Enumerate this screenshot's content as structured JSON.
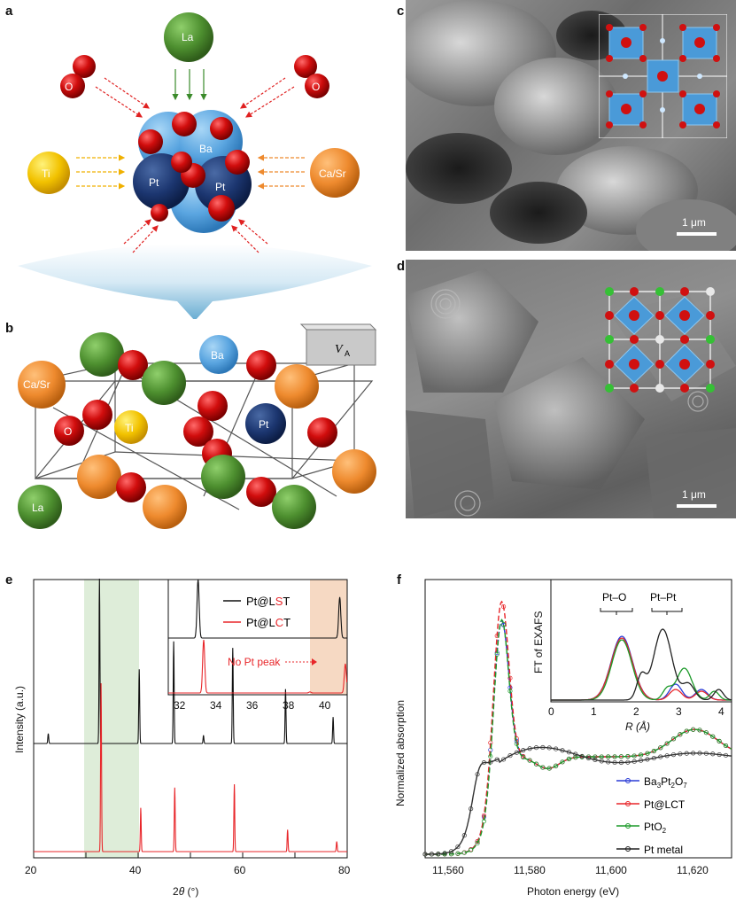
{
  "panels": {
    "a": "a",
    "b": "b",
    "c": "c",
    "d": "d",
    "e": "e",
    "f": "f"
  },
  "panel_a": {
    "La": "La",
    "O_left": "O",
    "O_right": "O",
    "Ti": "Ti",
    "CaSr": "Ca/Sr",
    "Ba": "Ba",
    "Pt1": "Pt",
    "Pt2": "Pt"
  },
  "panel_b": {
    "Ba": "Ba",
    "CaSr": "Ca/Sr",
    "O": "O",
    "Ti": "Ti",
    "Pt": "Pt",
    "La": "La",
    "vacancy": "V",
    "vacancy_sub": "A"
  },
  "panel_c": {
    "scale": "1 μm"
  },
  "panel_d": {
    "scale": "1 μm"
  },
  "panel_e": {
    "ylabel": "Intensity (a.u.)",
    "xlabel_pre": "2",
    "xlabel_theta": "θ",
    "xlabel_post": " (°)",
    "xticks": [
      "20",
      "40",
      "60",
      "80"
    ],
    "inset_xticks": [
      "32",
      "34",
      "36",
      "38",
      "40"
    ],
    "legend": [
      {
        "prefix": "Pt@L",
        "mid": "S",
        "suffix": "T",
        "color": "#111111"
      },
      {
        "prefix": "Pt@L",
        "mid": "C",
        "suffix": "T",
        "color": "#e8262a"
      }
    ],
    "annotation": "No Pt peak"
  },
  "panel_f": {
    "ylabel": "Normalized absorption",
    "xlabel": "Photon energy (eV)",
    "xticks": [
      "11,560",
      "11,580",
      "11,600",
      "11,620"
    ],
    "inset_ylabel": "FT of EXAFS",
    "inset_xlabel": "R (Å)",
    "inset_xticks": [
      "0",
      "1",
      "2",
      "3",
      "4"
    ],
    "inset_labels": [
      "Pt–O",
      "Pt–Pt"
    ],
    "legend": [
      "Ba3Pt2O7",
      "Pt@LCT",
      "PtO2",
      "Pt metal"
    ]
  },
  "chart_data": [
    {
      "type": "line",
      "title": "",
      "xlabel": "2θ (°)",
      "ylabel": "Intensity (a.u.)",
      "xlim": [
        20,
        80
      ],
      "series": [
        {
          "name": "Pt@LST",
          "color": "#111111",
          "peaks": [
            [
              22.8,
              0.06
            ],
            [
              32.6,
              1.0
            ],
            [
              40.2,
              0.45
            ],
            [
              46.8,
              0.62
            ],
            [
              52.5,
              0.05
            ],
            [
              58.1,
              0.58
            ],
            [
              68.2,
              0.33
            ],
            [
              77.3,
              0.16
            ]
          ]
        },
        {
          "name": "Pt@LCT",
          "color": "#e8262a",
          "peaks": [
            [
              32.9,
              1.0
            ],
            [
              40.5,
              0.26
            ],
            [
              47.0,
              0.38
            ],
            [
              58.4,
              0.4
            ],
            [
              68.6,
              0.13
            ],
            [
              78.0,
              0.06
            ]
          ]
        }
      ],
      "highlight_x": [
        30,
        40
      ],
      "inset": {
        "xlim": [
          31,
          40.6
        ],
        "highlight_x": [
          39.2,
          40.6
        ],
        "annotation": "No Pt peak"
      }
    },
    {
      "type": "line",
      "title": "",
      "xlabel": "Photon energy (eV)",
      "ylabel": "Normalized absorption",
      "xlim": [
        11550,
        11625
      ],
      "series": [
        {
          "name": "Ba3Pt2O7",
          "color": "#2a3bd6"
        },
        {
          "name": "Pt@LCT",
          "color": "#e8262a"
        },
        {
          "name": "PtO2",
          "color": "#1d9a2a"
        },
        {
          "name": "Pt metal",
          "color": "#222222"
        }
      ],
      "inset": {
        "xlabel": "R (Å)",
        "ylabel": "FT of EXAFS",
        "xlim": [
          0,
          4.2
        ],
        "labels": [
          "Pt–O",
          "Pt–Pt"
        ]
      }
    }
  ]
}
